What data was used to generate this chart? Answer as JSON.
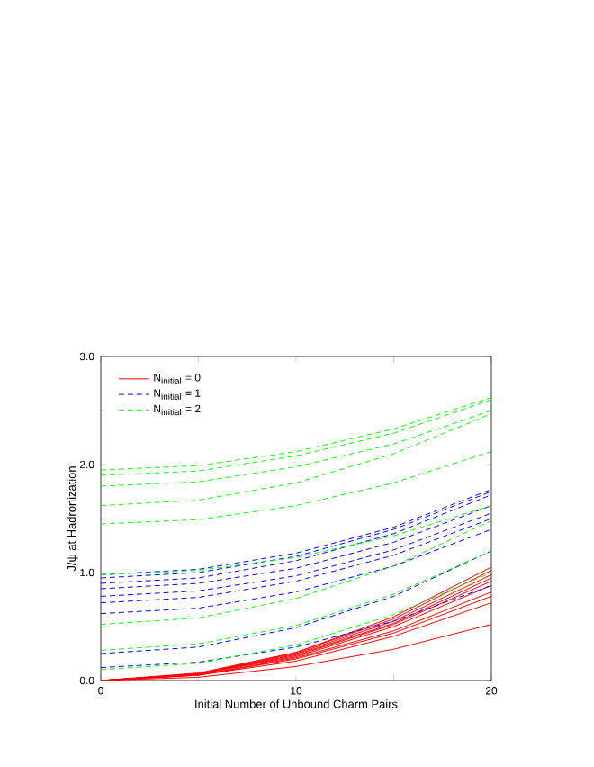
{
  "chart_data": {
    "type": "line",
    "xlabel": "Initial Number of Unbound Charm Pairs",
    "ylabel": "J/ψ at Hadronization",
    "x": [
      0,
      5,
      10,
      15,
      20
    ],
    "xlim": [
      0,
      20
    ],
    "ylim": [
      0,
      3
    ],
    "xticks": [
      0,
      {
        "value": 5,
        "label": null
      },
      10,
      {
        "value": 15,
        "label": null
      },
      20
    ],
    "yticks": [
      {
        "value": 0,
        "label": "0.0"
      },
      {
        "value": 0.5,
        "label": null
      },
      {
        "value": 1,
        "label": "1.0"
      },
      {
        "value": 1.5,
        "label": null
      },
      {
        "value": 2,
        "label": "2.0"
      },
      {
        "value": 2.5,
        "label": null
      },
      {
        "value": 3,
        "label": "3.0"
      }
    ],
    "legend": "top left",
    "marker": "none",
    "series": [
      {
        "name": "N$_{initial}$ = 0",
        "color": "#ff0000",
        "line_style": "solid",
        "values": [
          0,
          0.07,
          0.26,
          0.59,
          1.05
        ]
      },
      {
        "name": "N$_{initial}$ = 1",
        "color": "#0000ff",
        "line_style": "dashed",
        "values": [
          0.98,
          1.03,
          1.18,
          1.42,
          1.77
        ]
      },
      {
        "name": "N$_{initial}$ = 2",
        "color": "#00ff00",
        "line_style": "dashed",
        "values": [
          1.95,
          1.99,
          2.12,
          2.33,
          2.62
        ]
      },
      {
        "color": "#ff0000",
        "line_style": "solid",
        "values": [
          0,
          0.06,
          0.26,
          0.57,
          1.02
        ]
      },
      {
        "color": "#ff0000",
        "line_style": "solid",
        "values": [
          0,
          0.06,
          0.25,
          0.55,
          0.98
        ]
      },
      {
        "color": "#ff0000",
        "line_style": "solid",
        "values": [
          0,
          0.06,
          0.24,
          0.53,
          0.95
        ]
      },
      {
        "color": "#ff0000",
        "line_style": "solid",
        "values": [
          0,
          0.06,
          0.23,
          0.52,
          0.92
        ]
      },
      {
        "color": "#ff0000",
        "line_style": "solid",
        "values": [
          0,
          0.06,
          0.22,
          0.5,
          0.88
        ]
      },
      {
        "color": "#ff0000",
        "line_style": "solid",
        "values": [
          0,
          0.05,
          0.21,
          0.46,
          0.82
        ]
      },
      {
        "color": "#ff0000",
        "line_style": "solid",
        "values": [
          0,
          0.05,
          0.2,
          0.44,
          0.78
        ]
      },
      {
        "color": "#ff0000",
        "line_style": "solid",
        "values": [
          0,
          0.05,
          0.18,
          0.41,
          0.72
        ]
      },
      {
        "color": "#ff0000",
        "line_style": "solid",
        "values": [
          0,
          0.03,
          0.13,
          0.29,
          0.52
        ]
      },
      {
        "color": "#0000ff",
        "line_style": "dashed",
        "values": [
          0.95,
          1.0,
          1.15,
          1.4,
          1.75
        ]
      },
      {
        "color": "#0000ff",
        "line_style": "dashed",
        "values": [
          0.9,
          0.95,
          1.11,
          1.36,
          1.72
        ]
      },
      {
        "color": "#0000ff",
        "line_style": "dashed",
        "values": [
          0.85,
          0.9,
          1.04,
          1.28,
          1.62
        ]
      },
      {
        "color": "#0000ff",
        "line_style": "dashed",
        "values": [
          0.78,
          0.83,
          0.97,
          1.21,
          1.55
        ]
      },
      {
        "color": "#0000ff",
        "line_style": "dashed",
        "values": [
          0.72,
          0.77,
          0.92,
          1.16,
          1.5
        ]
      },
      {
        "color": "#0000ff",
        "line_style": "dashed",
        "values": [
          0.62,
          0.67,
          0.82,
          1.06,
          1.4
        ]
      },
      {
        "color": "#0000ff",
        "line_style": "dashed",
        "values": [
          0.25,
          0.31,
          0.49,
          0.78,
          1.2
        ]
      },
      {
        "color": "#0000ff",
        "line_style": "dashed",
        "values": [
          0.12,
          0.17,
          0.31,
          0.55,
          0.88
        ]
      },
      {
        "color": "#00ff00",
        "line_style": "dashed",
        "values": [
          1.9,
          1.94,
          2.08,
          2.29,
          2.6
        ]
      },
      {
        "color": "#00ff00",
        "line_style": "dashed",
        "values": [
          1.8,
          1.84,
          1.98,
          2.19,
          2.5
        ]
      },
      {
        "color": "#00ff00",
        "line_style": "dashed",
        "values": [
          1.62,
          1.67,
          1.83,
          2.1,
          2.47
        ]
      },
      {
        "color": "#00ff00",
        "line_style": "dashed",
        "values": [
          1.45,
          1.49,
          1.62,
          1.83,
          2.12
        ]
      },
      {
        "color": "#00ff00",
        "line_style": "dashed",
        "values": [
          0.98,
          1.02,
          1.14,
          1.34,
          1.62
        ]
      },
      {
        "color": "#00ff00",
        "line_style": "dashed",
        "values": [
          0.52,
          0.58,
          0.76,
          1.06,
          1.48
        ]
      },
      {
        "color": "#00ff00",
        "line_style": "dashed",
        "values": [
          0.28,
          0.34,
          0.51,
          0.8,
          1.2
        ]
      },
      {
        "color": "#00ff00",
        "line_style": "dashed",
        "values": [
          0.1,
          0.16,
          0.33,
          0.61,
          1.0
        ]
      }
    ]
  }
}
